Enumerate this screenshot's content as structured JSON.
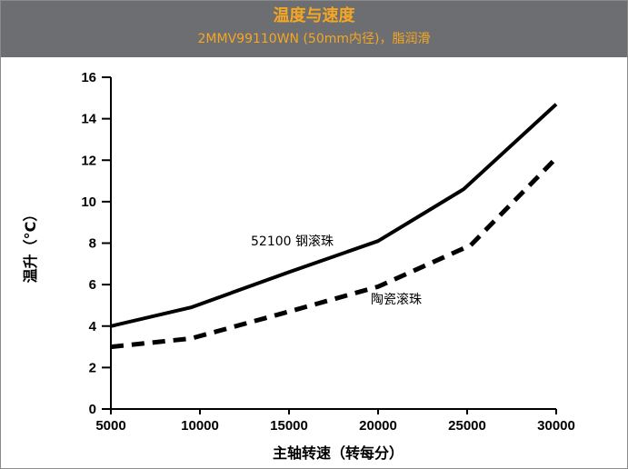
{
  "header": {
    "title": "温度与速度",
    "subtitle": "2MMV99110WN (50mm内径)，脂润滑"
  },
  "chart_data": {
    "type": "line",
    "xlabel": "主轴转速（转每分）",
    "ylabel": "温升（°C）",
    "xlim": [
      5000,
      30000
    ],
    "ylim": [
      0,
      16
    ],
    "x_ticks": [
      5000,
      10000,
      15000,
      20000,
      25000,
      30000
    ],
    "y_ticks": [
      0,
      2,
      4,
      6,
      8,
      10,
      12,
      14,
      16
    ],
    "grid": false,
    "series": [
      {
        "name": "52100 钢滚珠",
        "style": "solid",
        "color": "#000000",
        "x": [
          5000,
          9500,
          15000,
          20000,
          24800,
          30000
        ],
        "y": [
          4.0,
          4.9,
          6.6,
          8.1,
          10.6,
          14.7
        ]
      },
      {
        "name": "陶瓷滚珠",
        "style": "dashed",
        "color": "#000000",
        "x": [
          5000,
          9500,
          15000,
          20000,
          25200,
          30000
        ],
        "y": [
          3.0,
          3.4,
          4.7,
          5.9,
          7.9,
          12.1
        ]
      }
    ],
    "annotations": [
      {
        "text": "52100 钢滚珠",
        "series": 0
      },
      {
        "text": "陶瓷滚珠",
        "series": 1
      }
    ]
  }
}
